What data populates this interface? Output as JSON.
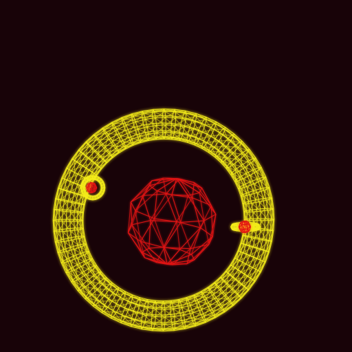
{
  "colors": {
    "background": "#180308",
    "ring_wireframe": "#f2ec1a",
    "sphere_wireframe": "#e11414",
    "glow_yellow": "#fff45a"
  },
  "scene": {
    "objects": [
      {
        "name": "central-sphere",
        "kind": "icosphere",
        "color": "sphere_wireframe"
      },
      {
        "name": "large-ring",
        "kind": "torus",
        "color": "ring_wireframe"
      },
      {
        "name": "small-moon-left",
        "kind": "icosphere",
        "color": "sphere_wireframe"
      },
      {
        "name": "small-ring-left",
        "kind": "torus",
        "color": "ring_wireframe"
      },
      {
        "name": "small-moon-right",
        "kind": "icosphere",
        "color": "sphere_wireframe"
      },
      {
        "name": "small-ring-right",
        "kind": "torus",
        "color": "ring_wireframe"
      }
    ]
  }
}
